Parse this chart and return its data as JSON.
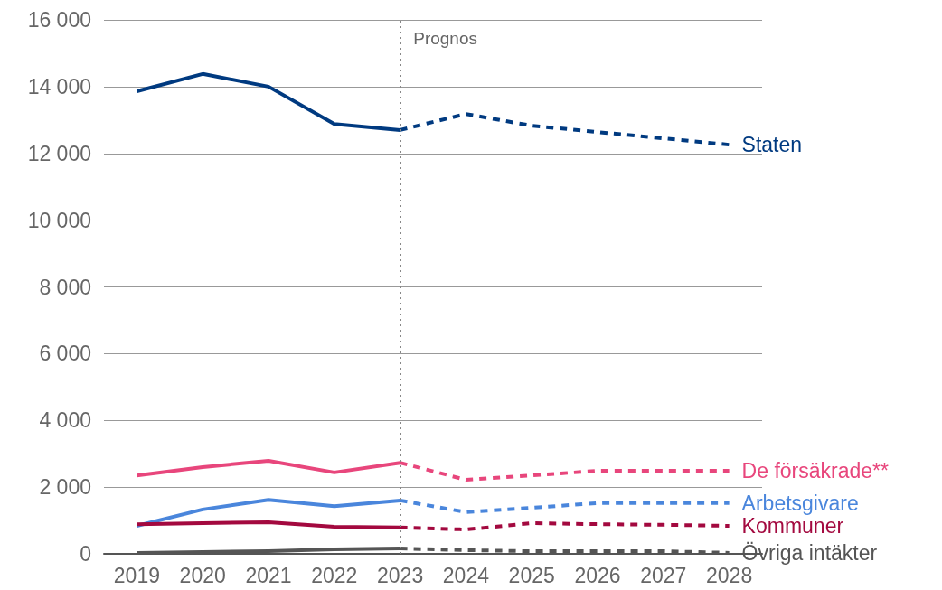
{
  "chart_data": {
    "type": "line",
    "categories": [
      "2019",
      "2020",
      "2021",
      "2022",
      "2023",
      "2024",
      "2025",
      "2026",
      "2027",
      "2028"
    ],
    "series": [
      {
        "color": "#003a80",
        "line_style": "solid",
        "values": [
          13860,
          14380,
          14000,
          12880,
          12700,
          null,
          null,
          null,
          null,
          null
        ]
      },
      {
        "name": "Staten",
        "color": "#003a80",
        "line_style": "dashed",
        "values": [
          null,
          null,
          null,
          null,
          12700,
          13180,
          12830,
          12640,
          12450,
          12260
        ]
      },
      {
        "color": "#e8467c",
        "line_style": "solid",
        "values": [
          2350,
          2600,
          2790,
          2440,
          2730,
          null,
          null,
          null,
          null,
          null
        ]
      },
      {
        "name": "De försäkrade**",
        "color": "#e8467c",
        "line_style": "dashed",
        "values": [
          null,
          null,
          null,
          null,
          2730,
          2220,
          2350,
          2490,
          2490,
          2490
        ]
      },
      {
        "color": "#4a86dc",
        "line_style": "solid",
        "values": [
          840,
          1330,
          1620,
          1430,
          1600,
          null,
          null,
          null,
          null,
          null
        ]
      },
      {
        "name": "Arbetsgivare",
        "color": "#4a86dc",
        "line_style": "dashed",
        "values": [
          null,
          null,
          null,
          null,
          1600,
          1250,
          1380,
          1520,
          1520,
          1520
        ]
      },
      {
        "color": "#a3093f",
        "line_style": "solid",
        "values": [
          890,
          920,
          950,
          810,
          790,
          null,
          null,
          null,
          null,
          null
        ]
      },
      {
        "name": "Kommuner",
        "color": "#a3093f",
        "line_style": "dashed",
        "values": [
          null,
          null,
          null,
          null,
          790,
          730,
          920,
          890,
          870,
          840
        ]
      },
      {
        "color": "#555555",
        "line_style": "solid",
        "values": [
          30,
          55,
          80,
          135,
          160,
          null,
          null,
          null,
          null,
          null
        ]
      },
      {
        "name": "Övriga intäkter",
        "color": "#555555",
        "line_style": "dashed",
        "values": [
          null,
          null,
          null,
          null,
          160,
          110,
          80,
          80,
          80,
          30
        ]
      }
    ],
    "ylim": [
      0,
      16000
    ],
    "yticks": [
      0,
      {
        "value": 2000,
        "label": "2 000"
      },
      {
        "value": 4000,
        "label": "4 000"
      },
      {
        "value": 6000,
        "label": "6 000"
      },
      {
        "value": 8000,
        "label": "8 000"
      },
      {
        "value": 10000,
        "label": "10 000"
      },
      {
        "value": 12000,
        "label": "12 000"
      },
      {
        "value": 14000,
        "label": "14 000"
      },
      {
        "value": 16000,
        "label": "16 000"
      }
    ],
    "ref_lines": [
      {
        "axis": "x",
        "value": "2023",
        "label": "Prognos",
        "color": "#888888",
        "line_style": "dotted"
      }
    ],
    "grid": "y",
    "legend": false,
    "marker": "none"
  }
}
